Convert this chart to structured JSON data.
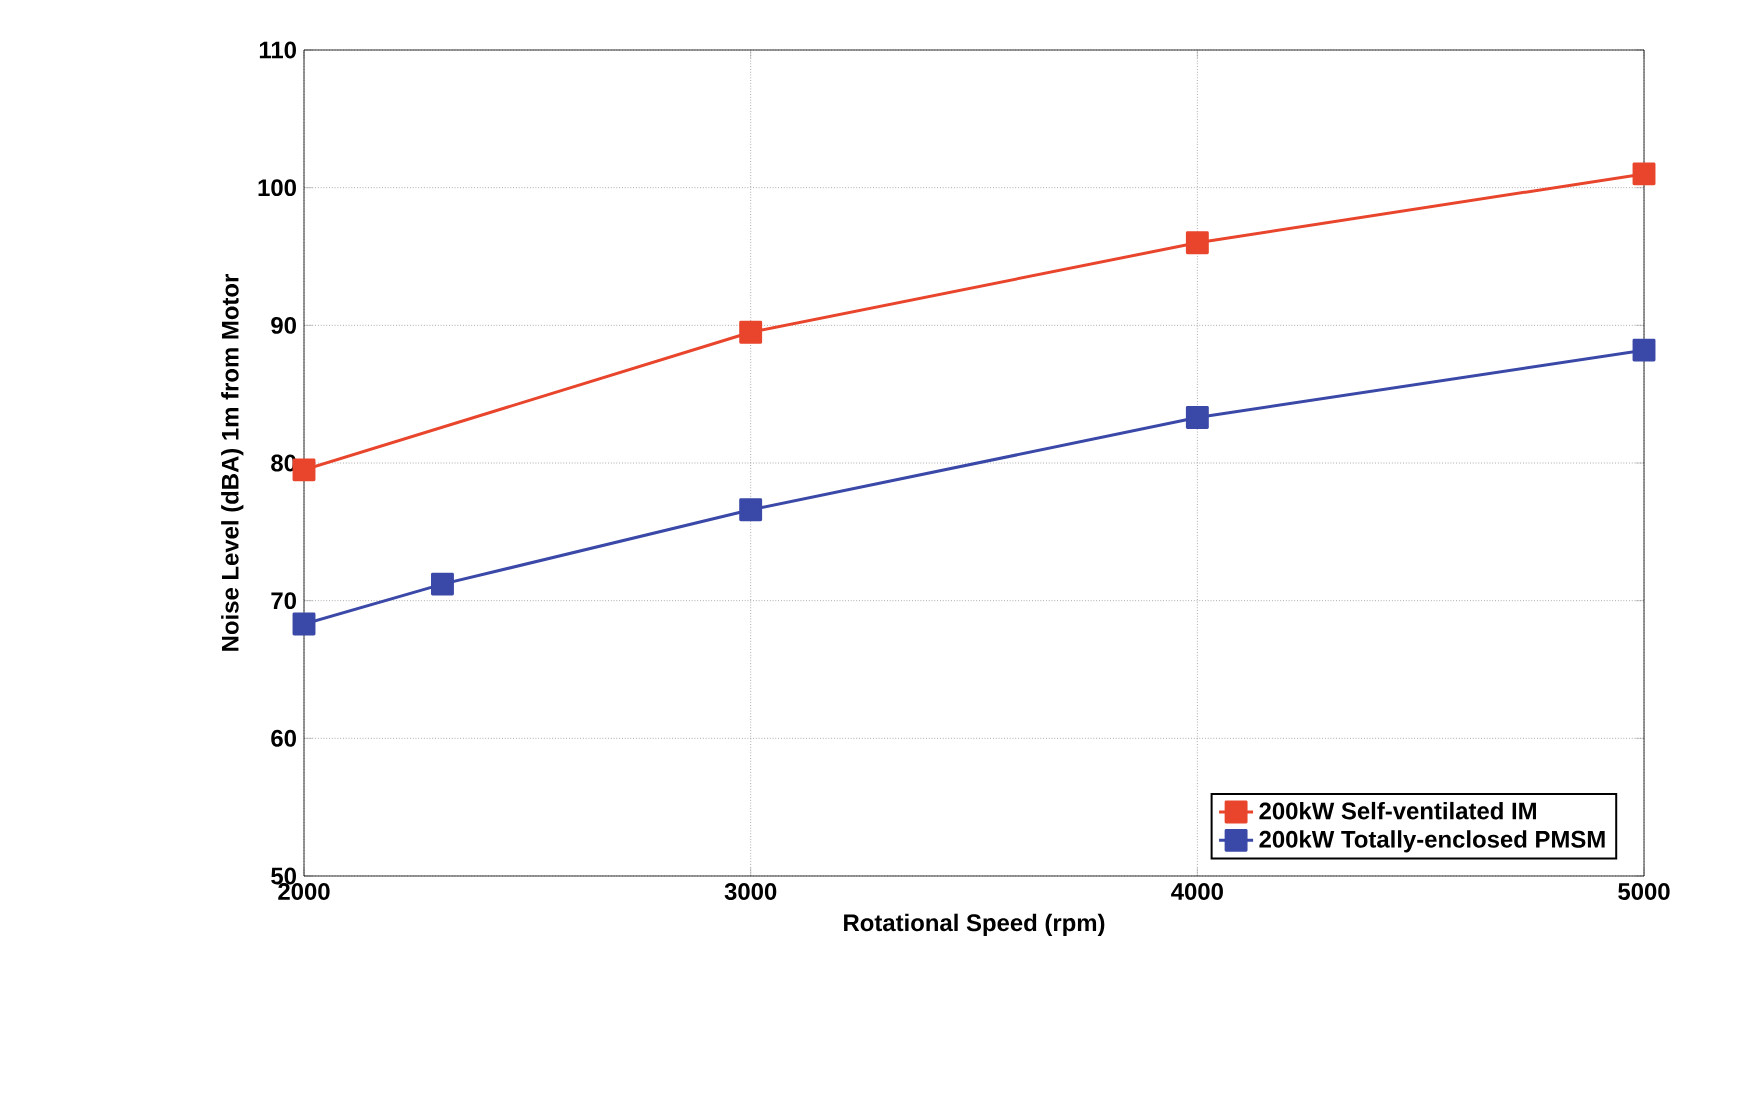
{
  "chart_data": {
    "type": "line",
    "xlabel": "Rotational Speed (rpm)",
    "ylabel": "Noise Level (dBA) 1m from Motor",
    "series": [
      {
        "name": "200kW Self-ventilated IM",
        "color": "#e8452c",
        "x": [
          2000,
          3000,
          4000,
          5000
        ],
        "values": [
          79.5,
          89.5,
          96,
          101
        ]
      },
      {
        "name": "200kW Totally-enclosed PMSM",
        "color": "#3a48a8",
        "x": [
          2000,
          2310,
          3000,
          4000,
          5000
        ],
        "values": [
          68.3,
          71.2,
          76.6,
          83.3,
          88.2
        ]
      }
    ],
    "xlim": [
      2000,
      5000
    ],
    "xticks": [
      2000,
      3000,
      4000,
      5000
    ],
    "ylim": [
      50,
      110
    ],
    "yticks": [
      50,
      60,
      70,
      80,
      90,
      100,
      110
    ],
    "grid": true,
    "legend": "bottom right",
    "marker": "square",
    "line_style": "solid"
  }
}
